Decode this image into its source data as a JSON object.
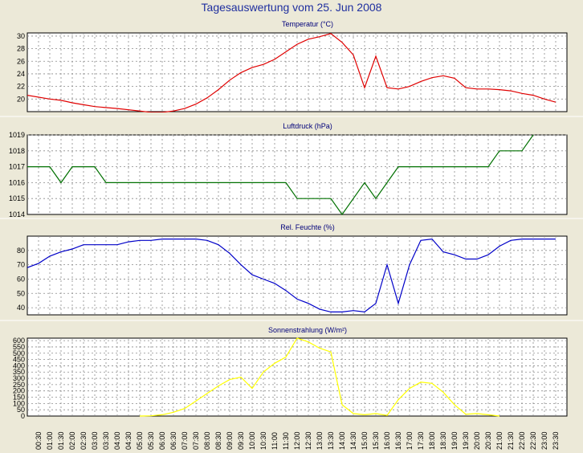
{
  "title": "Tagesauswertung vom 25. Jun 2008",
  "x_tick_labels": [
    "00:30",
    "01:00",
    "01:30",
    "02:00",
    "02:30",
    "03:00",
    "03:30",
    "04:00",
    "04:30",
    "05:00",
    "05:30",
    "06:00",
    "06:30",
    "07:00",
    "07:30",
    "08:00",
    "08:30",
    "09:00",
    "09:30",
    "10:00",
    "10:30",
    "11:00",
    "11:30",
    "12:00",
    "12:30",
    "13:00",
    "13:30",
    "14:00",
    "14:30",
    "15:00",
    "15:30",
    "16:00",
    "16:30",
    "17:00",
    "17:30",
    "18:00",
    "18:30",
    "19:00",
    "19:30",
    "20:00",
    "20:30",
    "21:00",
    "21:30",
    "22:00",
    "22:30",
    "23:00",
    "23:30"
  ],
  "chart_data": [
    {
      "type": "line",
      "title": "Temperatur (°C)",
      "color": "#e00000",
      "ylim": [
        18,
        30.5
      ],
      "yticks": [
        20,
        22,
        24,
        26,
        28,
        30
      ],
      "grid": true,
      "x": [
        "00:00",
        "01:00",
        "01:30",
        "02:00",
        "02:30",
        "03:00",
        "04:00",
        "05:00",
        "05:30",
        "06:00",
        "06:30",
        "07:00",
        "07:30",
        "08:00",
        "08:30",
        "09:00",
        "09:30",
        "10:00",
        "10:30",
        "11:00",
        "11:30",
        "12:00",
        "12:30",
        "13:00",
        "13:30",
        "14:00",
        "14:30",
        "15:00",
        "15:30",
        "16:00",
        "16:30",
        "17:00",
        "17:30",
        "18:00",
        "18:30",
        "19:00",
        "19:30",
        "20:00",
        "20:30",
        "21:00",
        "21:30",
        "22:00",
        "22:30",
        "23:00",
        "23:30"
      ],
      "y": [
        20.6,
        20.0,
        19.8,
        19.4,
        19.1,
        18.8,
        18.5,
        18.1,
        17.9,
        17.9,
        18.1,
        18.5,
        19.2,
        20.2,
        21.5,
        23.0,
        24.2,
        25.0,
        25.5,
        26.3,
        27.5,
        28.7,
        29.5,
        29.9,
        30.4,
        29.0,
        27.0,
        21.8,
        26.8,
        21.8,
        21.6,
        22.0,
        22.8,
        23.4,
        23.7,
        23.3,
        21.8,
        21.6,
        21.6,
        21.5,
        21.3,
        20.9,
        20.6,
        20.0,
        19.5
      ]
    },
    {
      "type": "line",
      "title": "Luftdruck (hPa)",
      "color": "#007000",
      "ylim": [
        1014,
        1019
      ],
      "yticks": [
        1014,
        1015,
        1016,
        1017,
        1018,
        1019
      ],
      "grid": true,
      "x": [
        "00:00",
        "01:00",
        "01:30",
        "02:00",
        "03:00",
        "03:30",
        "04:00",
        "11:30",
        "12:00",
        "13:00",
        "13:30",
        "14:00",
        "14:30",
        "15:00",
        "15:30",
        "16:00",
        "16:30",
        "17:00",
        "20:00",
        "20:30",
        "21:00",
        "21:30",
        "22:00",
        "22:30"
      ],
      "y": [
        1017,
        1017,
        1016,
        1017,
        1017,
        1016,
        1016,
        1016,
        1015,
        1015,
        1015,
        1014,
        1015,
        1016,
        1015,
        1016,
        1017,
        1017,
        1017,
        1017,
        1018,
        1018,
        1018,
        1019
      ]
    },
    {
      "type": "line",
      "title": "Rel. Feuchte (%)",
      "color": "#0000c8",
      "ylim": [
        35,
        90
      ],
      "yticks": [
        40,
        50,
        60,
        70,
        80
      ],
      "grid": true,
      "x": [
        "00:00",
        "00:30",
        "01:00",
        "01:30",
        "02:00",
        "02:30",
        "03:00",
        "04:00",
        "04:30",
        "05:00",
        "05:30",
        "06:00",
        "06:30",
        "07:00",
        "07:30",
        "08:00",
        "08:30",
        "09:00",
        "09:30",
        "10:00",
        "10:30",
        "11:00",
        "11:30",
        "12:00",
        "12:30",
        "13:00",
        "13:30",
        "14:00",
        "14:30",
        "15:00",
        "15:30",
        "16:00",
        "16:30",
        "17:00",
        "17:30",
        "18:00",
        "18:30",
        "19:00",
        "19:30",
        "20:00",
        "20:30",
        "21:00",
        "21:30",
        "22:00",
        "22:30",
        "23:00",
        "23:30"
      ],
      "y": [
        68,
        71,
        76,
        79,
        81,
        84,
        84,
        84,
        86,
        87,
        87,
        88,
        88,
        88,
        88,
        87,
        84,
        78,
        70,
        63,
        60,
        57,
        52,
        46,
        43,
        39,
        37,
        37,
        38,
        37,
        43,
        70,
        43,
        70,
        87,
        88,
        79,
        77,
        74,
        74,
        77,
        83,
        87,
        88,
        88,
        88,
        88
      ]
    },
    {
      "type": "line",
      "title": "Sonnenstrahlung (W/m²)",
      "color": "#ffff00",
      "ylim": [
        0,
        620
      ],
      "yticks": [
        0,
        50,
        100,
        150,
        200,
        250,
        300,
        350,
        400,
        450,
        500,
        550,
        600
      ],
      "grid": true,
      "x": [
        "05:00",
        "05:30",
        "06:00",
        "06:30",
        "07:00",
        "07:30",
        "08:00",
        "08:30",
        "09:00",
        "09:30",
        "10:00",
        "10:30",
        "11:00",
        "11:30",
        "12:00",
        "12:30",
        "13:00",
        "13:30",
        "14:00",
        "14:30",
        "15:00",
        "15:30",
        "16:00",
        "16:30",
        "17:00",
        "17:30",
        "18:00",
        "18:30",
        "19:00",
        "19:30",
        "20:00",
        "20:30",
        "21:00"
      ],
      "y": [
        0,
        2,
        10,
        30,
        60,
        120,
        180,
        240,
        290,
        310,
        220,
        350,
        420,
        470,
        620,
        590,
        540,
        510,
        90,
        20,
        10,
        20,
        5,
        130,
        220,
        270,
        260,
        190,
        90,
        15,
        20,
        10,
        0
      ]
    }
  ]
}
